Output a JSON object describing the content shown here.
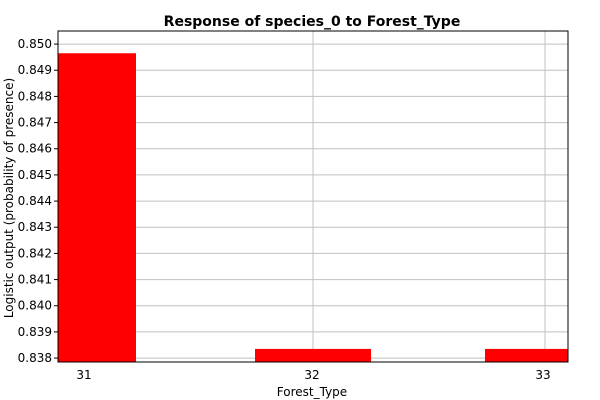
{
  "chart_data": {
    "type": "bar",
    "title": "Response of species_0 to Forest_Type",
    "xlabel": "Forest_Type",
    "ylabel": "Logistic output (probability of presence)",
    "categories": [
      "31",
      "32",
      "33"
    ],
    "values": [
      0.84965,
      0.83835,
      0.83835
    ],
    "ylim": [
      0.83785,
      0.8505
    ],
    "yticks": [
      0.838,
      0.839,
      0.84,
      0.841,
      0.842,
      0.843,
      0.844,
      0.845,
      0.846,
      0.847,
      0.848,
      0.849,
      0.85
    ],
    "ytick_labels": [
      "0.838",
      "0.839",
      "0.840",
      "0.841",
      "0.842",
      "0.843",
      "0.844",
      "0.845",
      "0.846",
      "0.847",
      "0.848",
      "0.849",
      "0.850"
    ],
    "bar_color": "#ff0000",
    "grid": true,
    "legend": "none"
  }
}
